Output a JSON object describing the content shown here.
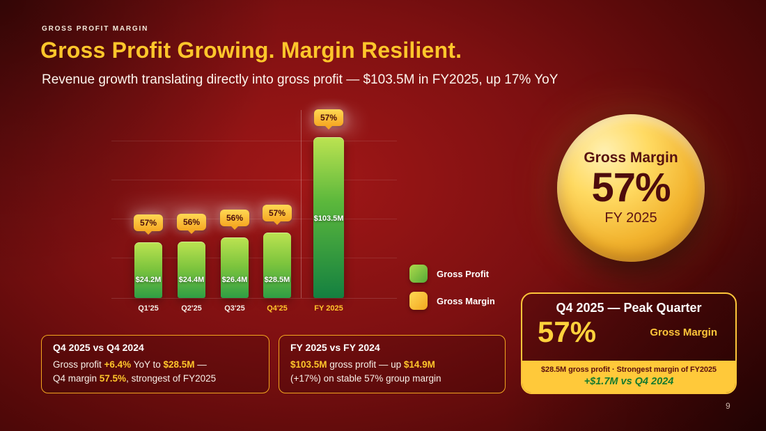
{
  "slide": {
    "eyebrow": "GROSS PROFIT MARGIN",
    "title": "Gross Profit Growing. Margin Resilient.",
    "subtitle": "Revenue growth translating directly into gross profit — $103.5M in FY2025, up 17% YoY",
    "page_number": "9"
  },
  "chart_data": {
    "type": "bar",
    "title": "",
    "categories": [
      "Q1'25",
      "Q2'25",
      "Q3'25",
      "Q4'25",
      "FY 2025"
    ],
    "series": [
      {
        "name": "Gross Profit",
        "unit": "$M",
        "values": [
          24.2,
          24.4,
          26.4,
          28.5,
          103.5
        ],
        "labels": [
          "$24.2M",
          "$24.4M",
          "$26.4M",
          "$28.5M",
          "$103.5M"
        ]
      },
      {
        "name": "Gross Margin",
        "unit": "%",
        "values": [
          57,
          56,
          56,
          57,
          57
        ],
        "labels": [
          "57%",
          "56%",
          "56%",
          "57%",
          "57%"
        ]
      }
    ],
    "legend": [
      {
        "label": "Gross Profit",
        "color": "#8CC63F"
      },
      {
        "label": "Gross Margin",
        "color": "#FFB81C"
      }
    ],
    "legend_position": "right",
    "grid": true,
    "ylim": [
      0,
      110
    ]
  },
  "margin_circle": {
    "title": "Gross Margin",
    "value": "57%",
    "period": "FY 2025"
  },
  "peak_card": {
    "title": "Q4 2025 — Peak Quarter",
    "value": "57%",
    "value_label": "Gross Margin",
    "detail": "$28.5M gross profit · Strongest margin of FY2025",
    "delta": "+$1.7M vs Q4 2024"
  },
  "insight_cards": [
    {
      "title": "Q4 2025 vs Q4 2024",
      "line1": [
        "Gross profit ",
        "+6.4%",
        " YoY to ",
        "$28.5M",
        " —"
      ],
      "line2": [
        "Q4 margin ",
        "57.5%",
        ", strongest of FY2025"
      ]
    },
    {
      "title": "FY 2025 vs FY 2024",
      "line1": [
        "$103.5M",
        " gross profit — up ",
        "$14.9M"
      ],
      "line2": [
        "(+17%) on stable 57% group margin"
      ]
    }
  ],
  "colors": {
    "accent_gold": "#FFC72C",
    "bar_green": "#8CC63F",
    "badge_gold": "#FFB81C",
    "positive_green": "#1D7A2E",
    "background_red": "#7A0F10"
  }
}
